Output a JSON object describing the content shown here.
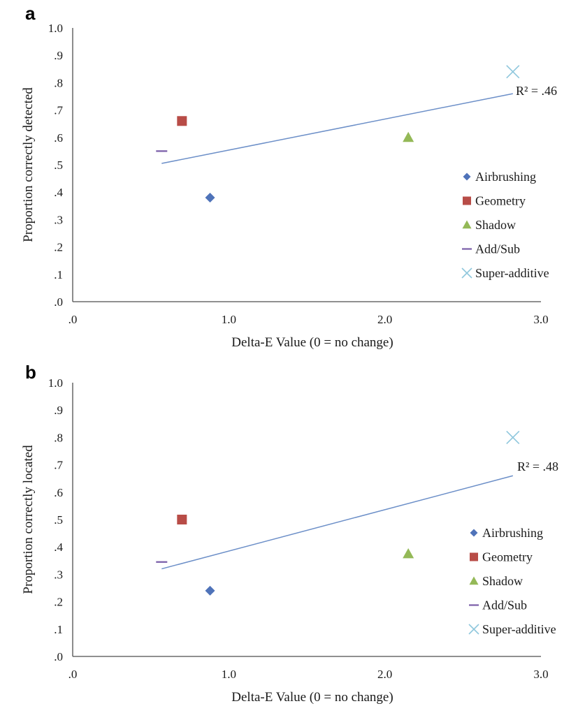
{
  "colors": {
    "airbrushing": "#4f73b9",
    "geometry": "#b84c47",
    "shadow": "#94b957",
    "addsub": "#7a5ea8",
    "superadditive": "#8fc7dd",
    "trendline": "#6c8fc8"
  },
  "legend_placement": "right",
  "chart_data": [
    {
      "type": "scatter",
      "panel_label": "a",
      "xlabel": "Delta-E  Value  (0 = no change)",
      "ylabel": "Proportion correctly detected",
      "xlim": [
        0,
        3
      ],
      "ylim": [
        0,
        1
      ],
      "x_tick_labels": [
        ".0",
        "1.0",
        "2.0",
        "3.0"
      ],
      "y_tick_labels": [
        ".0",
        ".1",
        ".2",
        ".3",
        ".4",
        ".5",
        ".6",
        ".7",
        ".8",
        ".9",
        "1.0"
      ],
      "grid": false,
      "series": [
        {
          "name": "Airbrushing",
          "marker": "diamond",
          "color_key": "airbrushing",
          "x": [
            0.88
          ],
          "y": [
            0.38
          ]
        },
        {
          "name": "Geometry",
          "marker": "square",
          "color_key": "geometry",
          "x": [
            0.7
          ],
          "y": [
            0.66
          ]
        },
        {
          "name": "Shadow",
          "marker": "triangle",
          "color_key": "shadow",
          "x": [
            2.15
          ],
          "y": [
            0.6
          ]
        },
        {
          "name": "Add/Sub",
          "marker": "dash",
          "color_key": "addsub",
          "x": [
            0.57
          ],
          "y": [
            0.55
          ]
        },
        {
          "name": "Super-additive",
          "marker": "x",
          "color_key": "superadditive",
          "x": [
            2.82
          ],
          "y": [
            0.84
          ]
        }
      ],
      "trendline": {
        "x": [
          0.57,
          2.82
        ],
        "y": [
          0.505,
          0.76
        ],
        "label": "R² = .46"
      }
    },
    {
      "type": "scatter",
      "panel_label": "b",
      "xlabel": "Delta-E  Value  (0 = no change)",
      "ylabel": "Proportion correctly located",
      "xlim": [
        0,
        3
      ],
      "ylim": [
        0,
        1
      ],
      "x_tick_labels": [
        ".0",
        "1.0",
        "2.0",
        "3.0"
      ],
      "y_tick_labels": [
        ".0",
        ".1",
        ".2",
        ".3",
        ".4",
        ".5",
        ".6",
        ".7",
        ".8",
        ".9",
        "1.0"
      ],
      "grid": false,
      "series": [
        {
          "name": "Airbrushing",
          "marker": "diamond",
          "color_key": "airbrushing",
          "x": [
            0.88
          ],
          "y": [
            0.24
          ]
        },
        {
          "name": "Geometry",
          "marker": "square",
          "color_key": "geometry",
          "x": [
            0.7
          ],
          "y": [
            0.5
          ]
        },
        {
          "name": "Shadow",
          "marker": "triangle",
          "color_key": "shadow",
          "x": [
            2.15
          ],
          "y": [
            0.375
          ]
        },
        {
          "name": "Add/Sub",
          "marker": "dash",
          "color_key": "addsub",
          "x": [
            0.57
          ],
          "y": [
            0.345
          ]
        },
        {
          "name": "Super-additive",
          "marker": "x",
          "color_key": "superadditive",
          "x": [
            2.82
          ],
          "y": [
            0.8
          ]
        }
      ],
      "trendline": {
        "x": [
          0.57,
          2.82
        ],
        "y": [
          0.32,
          0.66
        ],
        "label": "R² = .48"
      }
    }
  ]
}
